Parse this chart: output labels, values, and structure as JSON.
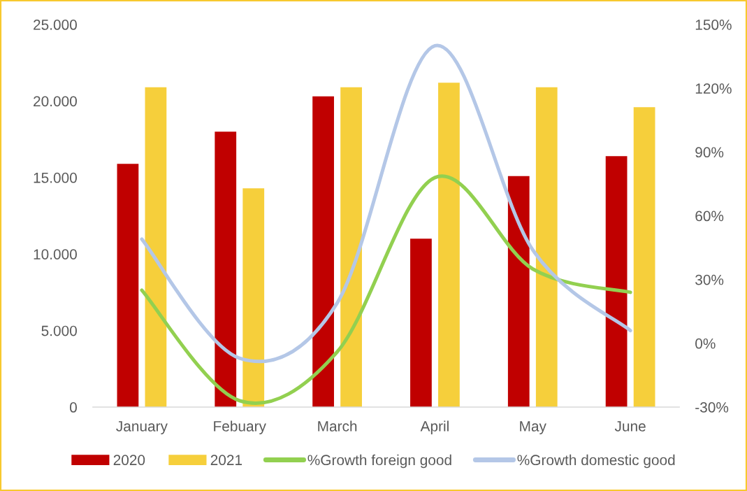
{
  "chart_data": {
    "type": "bar",
    "categories": [
      "January",
      "Febuary",
      "March",
      "April",
      "May",
      "June"
    ],
    "series": [
      {
        "name": "2020",
        "color": "#c00000",
        "values": [
          15900,
          18000,
          20300,
          11000,
          15100,
          16400
        ]
      },
      {
        "name": "2021",
        "color": "#f6cf3b",
        "values": [
          20900,
          14300,
          20900,
          21200,
          20900,
          19600
        ]
      },
      {
        "name": "%Growth foreign good",
        "type": "line",
        "axis": "y2",
        "color": "#92d050",
        "values": [
          25,
          -27,
          -4,
          78,
          35,
          24
        ]
      },
      {
        "name": "%Growth domestic good",
        "type": "line",
        "axis": "y2",
        "color": "#b4c7e7",
        "values": [
          49,
          -7,
          19,
          140,
          44,
          6
        ]
      }
    ],
    "ylim": [
      0,
      25000
    ],
    "yticks": [
      {
        "value": 0,
        "label": "0"
      },
      {
        "value": 5000,
        "label": "5.000"
      },
      {
        "value": 10000,
        "label": "10.000"
      },
      {
        "value": 15000,
        "label": "15.000"
      },
      {
        "value": 20000,
        "label": "20.000"
      },
      {
        "value": 25000,
        "label": "25.000"
      }
    ],
    "y2lim": [
      -30,
      150
    ],
    "y2ticks": [
      {
        "value": -30,
        "label": "-30%"
      },
      {
        "value": 0,
        "label": "0%"
      },
      {
        "value": 30,
        "label": "30%"
      },
      {
        "value": 60,
        "label": "60%"
      },
      {
        "value": 90,
        "label": "90%"
      },
      {
        "value": 120,
        "label": "120%"
      },
      {
        "value": 150,
        "label": "150%"
      }
    ],
    "grid": false,
    "legend": "bottom",
    "marker": "none",
    "line_style": "solid"
  }
}
